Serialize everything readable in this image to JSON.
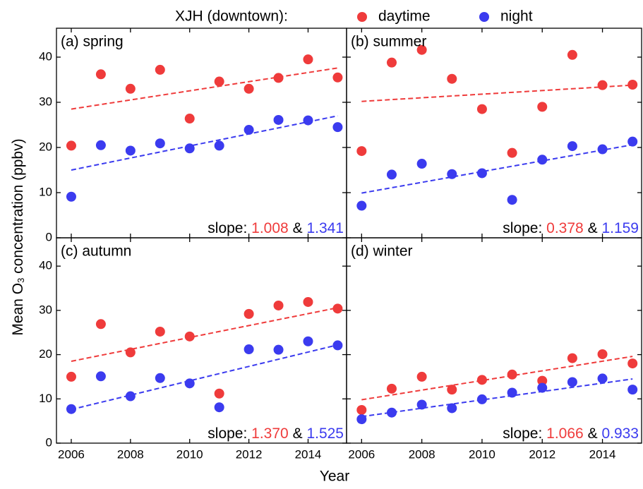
{
  "figure": {
    "legend_title": "XJH (downtown):",
    "ylabel": [
      "Mean O",
      "3",
      " concentration (ppbv)"
    ],
    "xlabel": "Year"
  },
  "chart_data": [
    {
      "type": "scatter",
      "title": "(a) spring",
      "x": [
        2006,
        2007,
        2008,
        2009,
        2010,
        2011,
        2012,
        2013,
        2014,
        2015
      ],
      "series": [
        {
          "name": "daytime",
          "color": "#ef3b3b",
          "values": [
            20.4,
            36.2,
            33.0,
            37.2,
            26.4,
            34.6,
            33.0,
            35.4,
            39.5,
            35.5
          ],
          "trend": [
            28.5,
            37.6
          ]
        },
        {
          "name": "night",
          "color": "#3b3bef",
          "values": [
            9.1,
            20.5,
            19.3,
            20.9,
            19.8,
            20.4,
            23.9,
            26.1,
            26.0,
            24.5
          ],
          "trend": [
            15.0,
            27.0
          ]
        }
      ],
      "annotation": {
        "prefix": "slope:",
        "day": "1.008",
        "sep": "&",
        "night": "1.341"
      },
      "xlim": [
        2005.5,
        2015.3
      ],
      "ylim": [
        0,
        46.4
      ],
      "xticks": [
        2006,
        2008,
        2010,
        2012,
        2014
      ],
      "yticks": [
        0,
        10,
        20,
        30,
        40
      ],
      "xtick_labels": false,
      "ytick_labels": true
    },
    {
      "type": "scatter",
      "title": "(b) summer",
      "x": [
        2006,
        2007,
        2008,
        2009,
        2010,
        2011,
        2012,
        2013,
        2014,
        2015
      ],
      "series": [
        {
          "name": "daytime",
          "color": "#ef3b3b",
          "values": [
            19.2,
            38.8,
            41.6,
            35.2,
            28.5,
            18.8,
            29.0,
            40.5,
            33.8,
            33.9
          ],
          "trend": [
            30.2,
            33.8
          ]
        },
        {
          "name": "night",
          "color": "#3b3bef",
          "values": [
            7.1,
            14.0,
            16.4,
            14.1,
            14.3,
            8.4,
            17.3,
            20.3,
            19.6,
            21.3
          ],
          "trend": [
            9.9,
            20.6
          ]
        }
      ],
      "annotation": {
        "prefix": "slope:",
        "day": "0.378",
        "sep": "&",
        "night": "1.159"
      },
      "xlim": [
        2005.5,
        2015.3
      ],
      "ylim": [
        0,
        46.4
      ],
      "xticks": [
        2006,
        2008,
        2010,
        2012,
        2014
      ],
      "yticks": [
        0,
        10,
        20,
        30,
        40
      ],
      "xtick_labels": false,
      "ytick_labels": false
    },
    {
      "type": "scatter",
      "title": "(c) autumn",
      "x": [
        2006,
        2007,
        2008,
        2009,
        2010,
        2011,
        2012,
        2013,
        2014,
        2015
      ],
      "series": [
        {
          "name": "daytime",
          "color": "#ef3b3b",
          "values": [
            15.0,
            26.9,
            20.5,
            25.2,
            24.1,
            11.2,
            29.2,
            31.1,
            31.9,
            30.4
          ],
          "trend": [
            18.5,
            30.6
          ]
        },
        {
          "name": "night",
          "color": "#3b3bef",
          "values": [
            7.7,
            15.1,
            10.6,
            14.7,
            13.5,
            8.1,
            21.2,
            21.1,
            23.0,
            22.1
          ],
          "trend": [
            7.6,
            22.2
          ]
        }
      ],
      "annotation": {
        "prefix": "slope:",
        "day": "1.370",
        "sep": "&",
        "night": "1.525"
      },
      "xlim": [
        2005.5,
        2015.3
      ],
      "ylim": [
        0,
        46.4
      ],
      "xticks": [
        2006,
        2008,
        2010,
        2012,
        2014
      ],
      "yticks": [
        0,
        10,
        20,
        30,
        40
      ],
      "xtick_labels": true,
      "ytick_labels": true
    },
    {
      "type": "scatter",
      "title": "(d) winter",
      "x": [
        2006,
        2007,
        2008,
        2009,
        2010,
        2011,
        2012,
        2013,
        2014,
        2015
      ],
      "series": [
        {
          "name": "daytime",
          "color": "#ef3b3b",
          "values": [
            7.5,
            12.3,
            15.0,
            12.1,
            14.3,
            15.5,
            14.1,
            19.2,
            20.1,
            18.0
          ],
          "trend": [
            9.8,
            19.6
          ]
        },
        {
          "name": "night",
          "color": "#3b3bef",
          "values": [
            5.4,
            6.9,
            8.7,
            7.9,
            9.9,
            11.4,
            12.5,
            13.8,
            14.6,
            12.1
          ],
          "trend": [
            6.0,
            14.5
          ]
        }
      ],
      "annotation": {
        "prefix": "slope:",
        "day": "1.066",
        "sep": "&",
        "night": "0.933"
      },
      "xlim": [
        2005.5,
        2015.3
      ],
      "ylim": [
        0,
        46.4
      ],
      "xticks": [
        2006,
        2008,
        2010,
        2012,
        2014
      ],
      "yticks": [
        0,
        10,
        20,
        30,
        40
      ],
      "xtick_labels": true,
      "ytick_labels": false
    }
  ]
}
